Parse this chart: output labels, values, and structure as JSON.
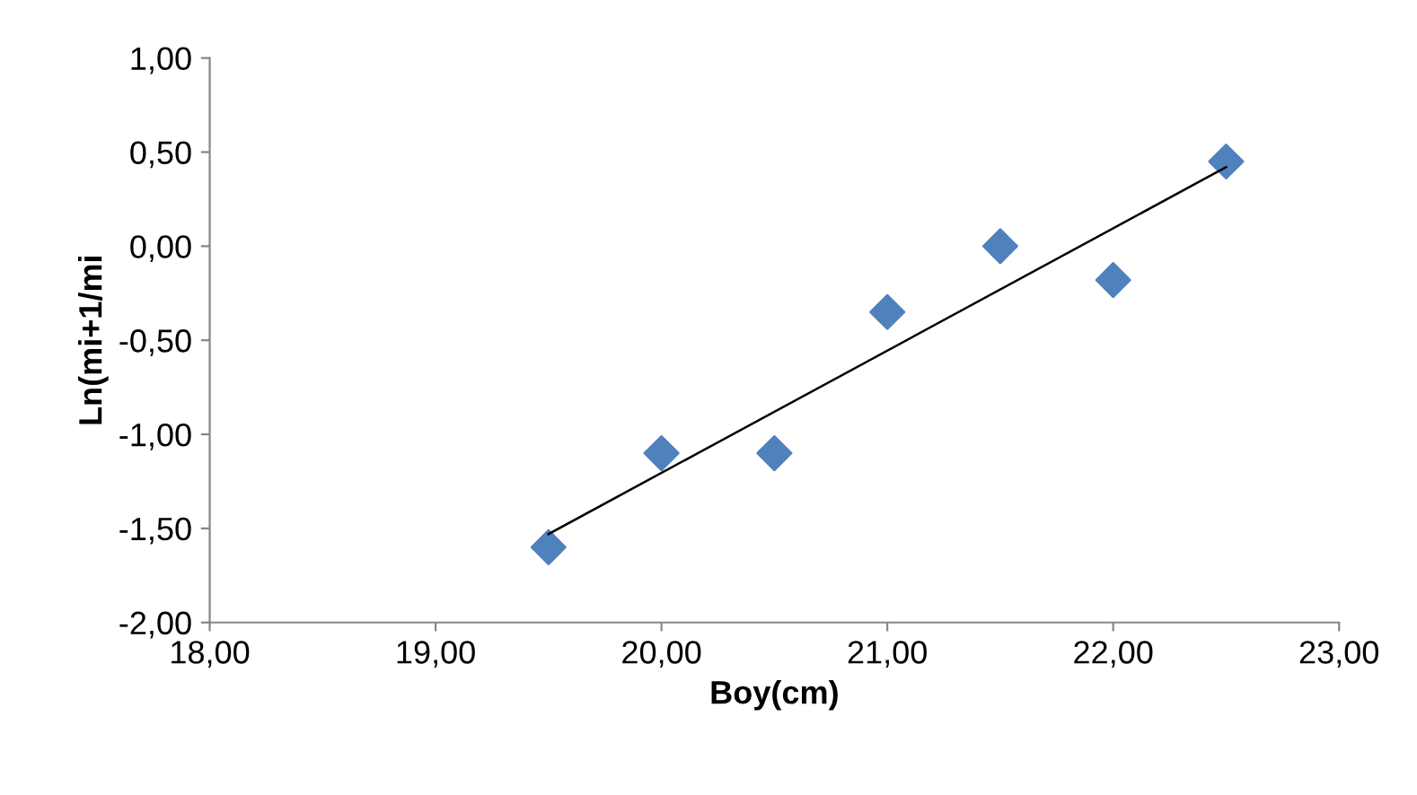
{
  "chart_data": {
    "type": "scatter",
    "xlabel": "Boy(cm)",
    "ylabel": "Ln(mi+1/mi",
    "marker": "diamond",
    "grid": false,
    "legend": false,
    "x": [
      19.5,
      20.0,
      20.5,
      21.0,
      21.5,
      22.0,
      22.5
    ],
    "series": [
      {
        "color": "#4f81bd",
        "values": [
          -1.6,
          -1.1,
          -1.1,
          -0.35,
          0.0,
          -0.18,
          0.45
        ]
      },
      {
        "type": "line",
        "color": "#000000",
        "marker": "none",
        "line_style": "solid",
        "x": [
          19.5,
          22.5
        ],
        "values": [
          -1.53,
          0.42
        ]
      }
    ],
    "xlim": [
      18,
      23
    ],
    "xticks": [
      {
        "value": 18,
        "label": "18,00"
      },
      {
        "value": 19,
        "label": "19,00"
      },
      {
        "value": 20,
        "label": "20,00"
      },
      {
        "value": 21,
        "label": "21,00"
      },
      {
        "value": 22,
        "label": "22,00"
      },
      {
        "value": 23,
        "label": "23,00"
      }
    ],
    "ylim": [
      -2,
      1
    ],
    "yticks": [
      {
        "value": -2,
        "label": "-2,00"
      },
      {
        "value": -1.5,
        "label": "-1,50"
      },
      {
        "value": -1,
        "label": "-1,00"
      },
      {
        "value": -0.5,
        "label": "-0,50"
      },
      {
        "value": 0,
        "label": "0,00"
      },
      {
        "value": 0.5,
        "label": "0,50"
      },
      {
        "value": 1,
        "label": "1,00"
      }
    ]
  }
}
